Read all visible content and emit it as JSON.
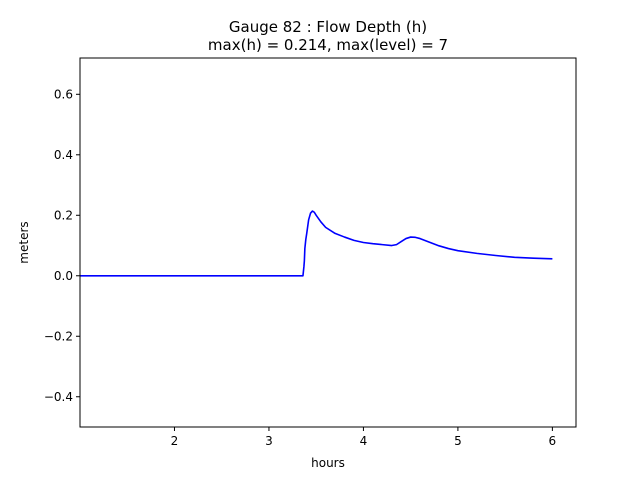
{
  "chart_data": {
    "type": "line",
    "title_line1": "Gauge 82 : Flow Depth (h)",
    "title_line2": "max(h) =   0.214,    max(level) = 7",
    "xlabel": "hours",
    "ylabel": "meters",
    "xlim": [
      1.0,
      6.25
    ],
    "ylim": [
      -0.5,
      0.72
    ],
    "xticks": [
      2,
      3,
      4,
      5,
      6
    ],
    "yticks": [
      -0.4,
      -0.2,
      0.0,
      0.2,
      0.4,
      0.6
    ],
    "xtick_labels": [
      "2",
      "3",
      "4",
      "5",
      "6"
    ],
    "ytick_labels": [
      "−0.4",
      "−0.2",
      "0.0",
      "0.2",
      "0.4",
      "0.6"
    ],
    "grid": false,
    "series": [
      {
        "color": "#0000ff",
        "x": [
          1.0,
          3.36,
          3.37,
          3.375,
          3.38,
          3.39,
          3.4,
          3.42,
          3.44,
          3.46,
          3.48,
          3.5,
          3.55,
          3.6,
          3.7,
          3.8,
          3.9,
          4.0,
          4.1,
          4.2,
          4.3,
          4.35,
          4.4,
          4.45,
          4.5,
          4.55,
          4.6,
          4.7,
          4.8,
          4.9,
          5.0,
          5.2,
          5.4,
          5.6,
          5.8,
          6.0
        ],
        "y": [
          0.0,
          0.0,
          0.03,
          0.05,
          0.09,
          0.12,
          0.14,
          0.185,
          0.207,
          0.214,
          0.21,
          0.2,
          0.178,
          0.16,
          0.14,
          0.128,
          0.117,
          0.11,
          0.106,
          0.103,
          0.1,
          0.103,
          0.113,
          0.123,
          0.128,
          0.127,
          0.123,
          0.111,
          0.099,
          0.09,
          0.083,
          0.074,
          0.067,
          0.061,
          0.058,
          0.056
        ]
      }
    ]
  }
}
